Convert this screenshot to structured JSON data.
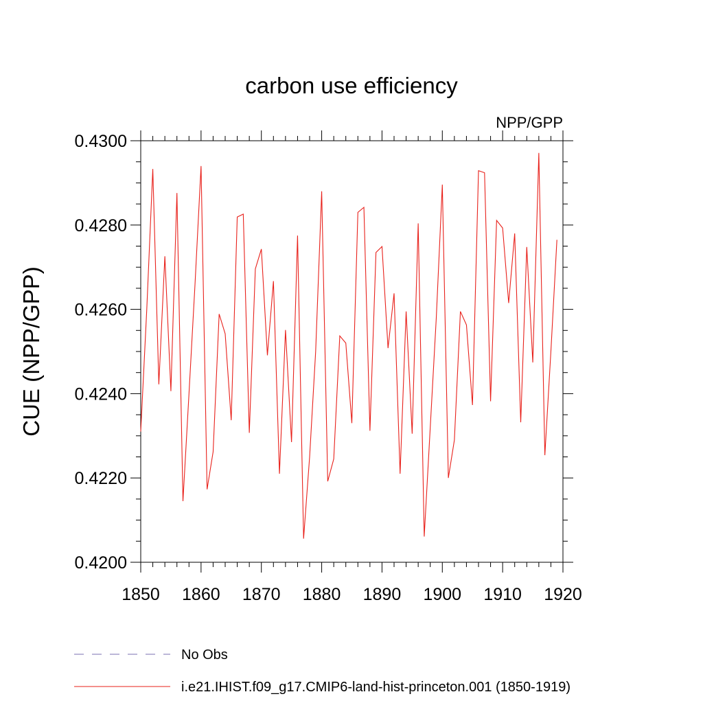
{
  "chart_data": {
    "type": "line",
    "title": "carbon use efficiency",
    "subtitle": "NPP/GPP",
    "xlabel": "",
    "ylabel": "CUE  (NPP/GPP)",
    "xlim": [
      1850,
      1920
    ],
    "ylim": [
      0.42,
      0.43
    ],
    "x_ticks": [
      "1850",
      "1860",
      "1870",
      "1880",
      "1890",
      "1900",
      "1910",
      "1920"
    ],
    "y_ticks": [
      "0.4200",
      "0.4220",
      "0.4240",
      "0.4260",
      "0.4280",
      "0.4300"
    ],
    "grid": false,
    "legend_position": "bottom",
    "colors": {
      "obs": "#7a6fb0",
      "model": "#e8201a"
    },
    "x": [
      1850,
      1851,
      1852,
      1853,
      1854,
      1855,
      1856,
      1857,
      1858,
      1859,
      1860,
      1861,
      1862,
      1863,
      1864,
      1865,
      1866,
      1867,
      1868,
      1869,
      1870,
      1871,
      1872,
      1873,
      1874,
      1875,
      1876,
      1877,
      1878,
      1879,
      1880,
      1881,
      1882,
      1883,
      1884,
      1885,
      1886,
      1887,
      1888,
      1889,
      1890,
      1891,
      1892,
      1893,
      1894,
      1895,
      1896,
      1897,
      1898,
      1899,
      1900,
      1901,
      1902,
      1903,
      1904,
      1905,
      1906,
      1907,
      1908,
      1909,
      1910,
      1911,
      1912,
      1913,
      1914,
      1915,
      1916,
      1917,
      1918,
      1919
    ],
    "series": [
      {
        "name": "i.e21.IHIST.f09_g17.CMIP6-land-hist-princeton.001 (1850-1919)",
        "values": [
          0.4231,
          0.426,
          0.42933,
          0.42422,
          0.42726,
          0.42406,
          0.42876,
          0.42145,
          0.424,
          0.4266,
          0.4294,
          0.42173,
          0.42262,
          0.42589,
          0.42542,
          0.42337,
          0.42819,
          0.42826,
          0.42307,
          0.42696,
          0.42743,
          0.42491,
          0.42667,
          0.4221,
          0.42551,
          0.42285,
          0.42775,
          0.42056,
          0.4225,
          0.425,
          0.4288,
          0.42192,
          0.42245,
          0.42537,
          0.4252,
          0.4233,
          0.4283,
          0.42842,
          0.42312,
          0.42735,
          0.42749,
          0.42508,
          0.42638,
          0.4221,
          0.42595,
          0.42305,
          0.42804,
          0.42061,
          0.4232,
          0.4258,
          0.42896,
          0.422,
          0.4229,
          0.42595,
          0.42563,
          0.42373,
          0.42929,
          0.42924,
          0.42382,
          0.42811,
          0.42793,
          0.42615,
          0.4278,
          0.42332,
          0.42748,
          0.42474,
          0.42971,
          0.42254,
          0.425,
          0.42765
        ]
      }
    ],
    "legend": [
      {
        "label": "No Obs",
        "style": "dashed"
      },
      {
        "label": "i.e21.IHIST.f09_g17.CMIP6-land-hist-princeton.001 (1850-1919)",
        "style": "solid"
      }
    ]
  }
}
